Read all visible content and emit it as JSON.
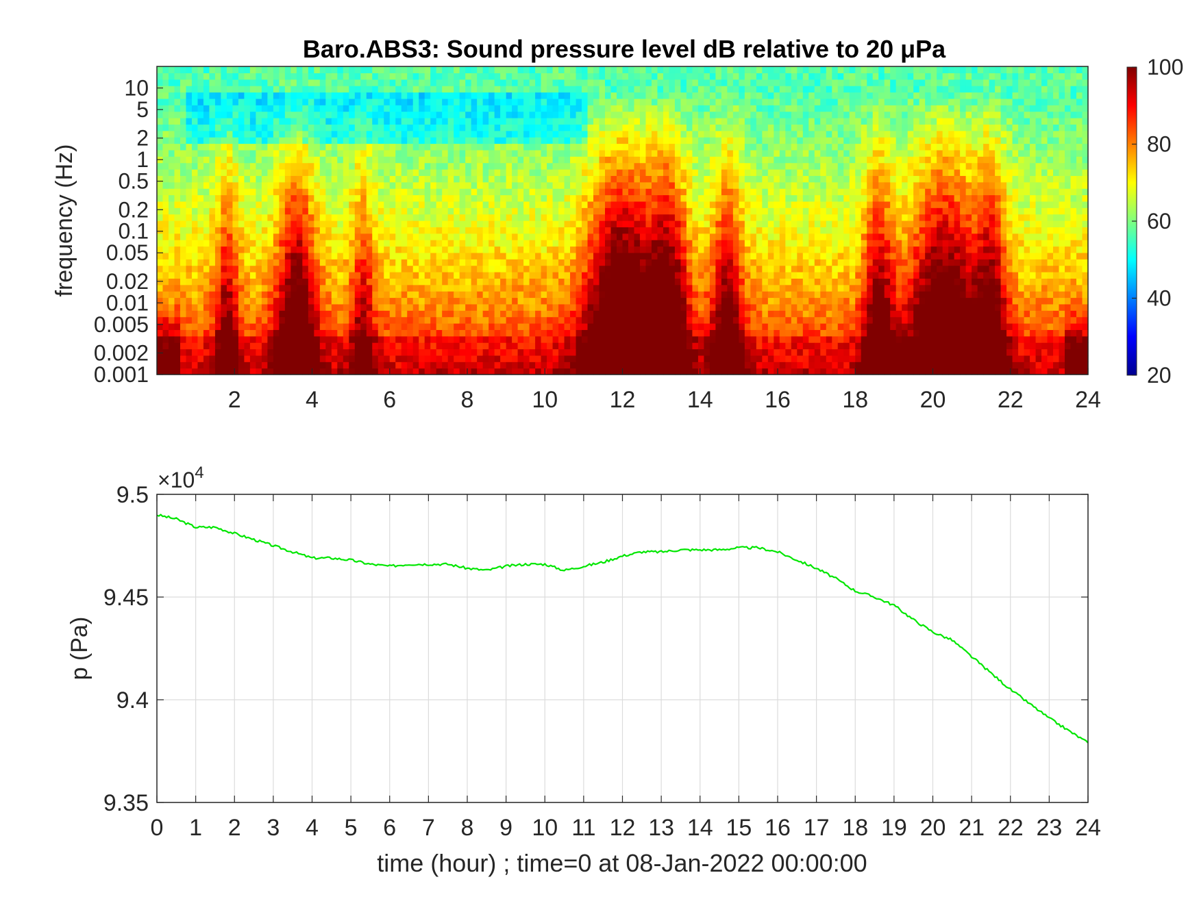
{
  "chart_data": [
    {
      "type": "heatmap",
      "title": "Baro.ABS3: Sound pressure level dB relative to 20 μPa",
      "ylabel": "frequency (Hz)",
      "yscale": "log",
      "ylim": [
        0.001,
        20
      ],
      "xlim": [
        0,
        24
      ],
      "x_ticks": [
        "2",
        "4",
        "6",
        "8",
        "10",
        "12",
        "14",
        "16",
        "18",
        "20",
        "22",
        "24"
      ],
      "y_ticks": [
        "0.001",
        "0.002",
        "0.005",
        "0.01",
        "0.02",
        "0.05",
        "0.1",
        "0.2",
        "0.5",
        "1",
        "2",
        "5",
        "10"
      ],
      "colorbar": {
        "min": 20,
        "max": 100,
        "ticks": [
          "20",
          "40",
          "60",
          "80",
          "100"
        ],
        "colormap": "jet"
      },
      "high_activity_hours": [
        {
          "center": 3.6,
          "width": 0.5,
          "amp": 0.55
        },
        {
          "center": 12.0,
          "width": 0.9,
          "amp": 0.7
        },
        {
          "center": 13.2,
          "width": 0.5,
          "amp": 0.55
        },
        {
          "center": 14.7,
          "width": 0.4,
          "amp": 0.45
        },
        {
          "center": 18.6,
          "width": 0.4,
          "amp": 0.45
        },
        {
          "center": 20.3,
          "width": 0.9,
          "amp": 0.6
        },
        {
          "center": 21.5,
          "width": 0.4,
          "amp": 0.45
        },
        {
          "center": 1.8,
          "width": 0.3,
          "amp": 0.35
        },
        {
          "center": 5.3,
          "width": 0.3,
          "amp": 0.3
        }
      ]
    },
    {
      "type": "line",
      "xlabel": "time (hour) ; time=0 at 08-Jan-2022 00:00:00",
      "ylabel": "p (Pa)",
      "exponent_label": "×10",
      "exponent_power": "4",
      "xlim": [
        0,
        24
      ],
      "ylim": [
        9.35,
        9.5
      ],
      "y_scale_factor": 10000,
      "x_ticks": [
        "0",
        "1",
        "2",
        "3",
        "4",
        "5",
        "6",
        "7",
        "8",
        "9",
        "10",
        "11",
        "12",
        "13",
        "14",
        "15",
        "16",
        "17",
        "18",
        "19",
        "20",
        "21",
        "22",
        "23",
        "24"
      ],
      "y_ticks": [
        "9.35",
        "9.4",
        "9.45",
        "9.5"
      ],
      "grid": true,
      "line_color": "#00e600",
      "x": [
        0,
        0.5,
        1,
        1.5,
        2,
        2.5,
        3,
        3.5,
        4,
        4.5,
        5,
        5.5,
        6,
        6.5,
        7,
        7.5,
        8,
        8.5,
        9,
        9.5,
        10,
        10.5,
        11,
        11.5,
        12,
        12.5,
        13,
        13.5,
        14,
        14.5,
        15,
        15.5,
        16,
        16.5,
        17,
        17.5,
        18,
        18.5,
        19,
        19.5,
        20,
        20.5,
        21,
        21.5,
        22,
        22.5,
        23,
        23.5,
        24
      ],
      "y": [
        9.49,
        9.488,
        9.484,
        9.484,
        9.481,
        9.478,
        9.475,
        9.472,
        9.469,
        9.469,
        9.468,
        9.466,
        9.465,
        9.466,
        9.466,
        9.466,
        9.464,
        9.463,
        9.465,
        9.466,
        9.466,
        9.463,
        9.465,
        9.467,
        9.47,
        9.472,
        9.472,
        9.473,
        9.473,
        9.473,
        9.474,
        9.474,
        9.472,
        9.468,
        9.464,
        9.459,
        9.453,
        9.45,
        9.446,
        9.439,
        9.433,
        9.429,
        9.421,
        9.413,
        9.405,
        9.398,
        9.391,
        9.385,
        9.379
      ]
    }
  ]
}
